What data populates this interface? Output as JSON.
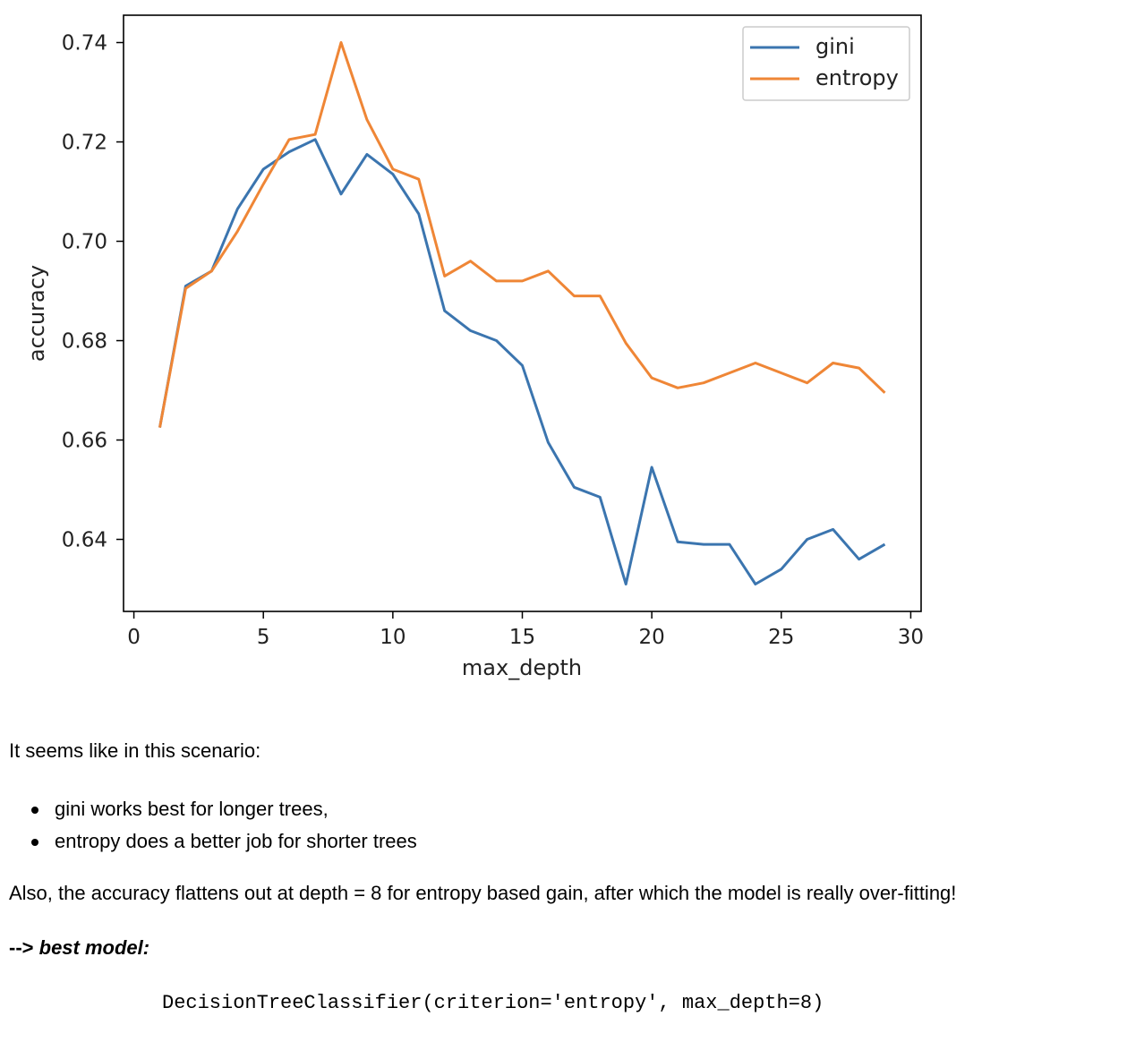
{
  "chart_data": {
    "type": "line",
    "title": "",
    "xlabel": "max_depth",
    "ylabel": "accuracy",
    "xlim": [
      -0.4,
      30.4
    ],
    "ylim": [
      0.6255,
      0.7455
    ],
    "xticks": [
      0,
      5,
      10,
      15,
      20,
      25,
      30
    ],
    "yticks": [
      0.64,
      0.66,
      0.68,
      0.7,
      0.72,
      0.74
    ],
    "ytick_labels": [
      "0.64",
      "0.66",
      "0.68",
      "0.70",
      "0.72",
      "0.74"
    ],
    "legend_position": "top-right",
    "grid": false,
    "x": [
      1,
      2,
      3,
      4,
      5,
      6,
      7,
      8,
      9,
      10,
      11,
      12,
      13,
      14,
      15,
      16,
      17,
      18,
      19,
      20,
      21,
      22,
      23,
      24,
      25,
      26,
      27,
      28,
      29
    ],
    "series": [
      {
        "name": "gini",
        "color": "#3b75af",
        "values": [
          0.6625,
          0.691,
          0.694,
          0.7065,
          0.7145,
          0.718,
          0.7205,
          0.7095,
          0.7175,
          0.7135,
          0.7055,
          0.686,
          0.682,
          0.68,
          0.675,
          0.6595,
          0.6505,
          0.6485,
          0.631,
          0.6545,
          0.6395,
          0.639,
          0.639,
          0.631,
          0.634,
          0.64,
          0.642,
          0.636,
          0.639
        ]
      },
      {
        "name": "entropy",
        "color": "#ef8636",
        "values": [
          0.6625,
          0.6905,
          0.694,
          0.702,
          0.7115,
          0.7205,
          0.7215,
          0.74,
          0.7245,
          0.7145,
          0.7125,
          0.693,
          0.696,
          0.692,
          0.692,
          0.694,
          0.689,
          0.689,
          0.6795,
          0.6725,
          0.6705,
          0.6715,
          0.6735,
          0.6755,
          0.6735,
          0.6715,
          0.6755,
          0.6745,
          0.6695
        ]
      }
    ]
  },
  "text": {
    "intro": "It seems like in this scenario:",
    "bullets": [
      "gini works best for longer trees,",
      "entropy does a better job for shorter trees"
    ],
    "also": "Also, the accuracy flattens out at depth = 8 for entropy based gain, after which the model is really over-fitting!",
    "best_arrow": "-->",
    "best_label": "best model:",
    "code": "DecisionTreeClassifier(criterion='entropy', max_depth=8)"
  }
}
